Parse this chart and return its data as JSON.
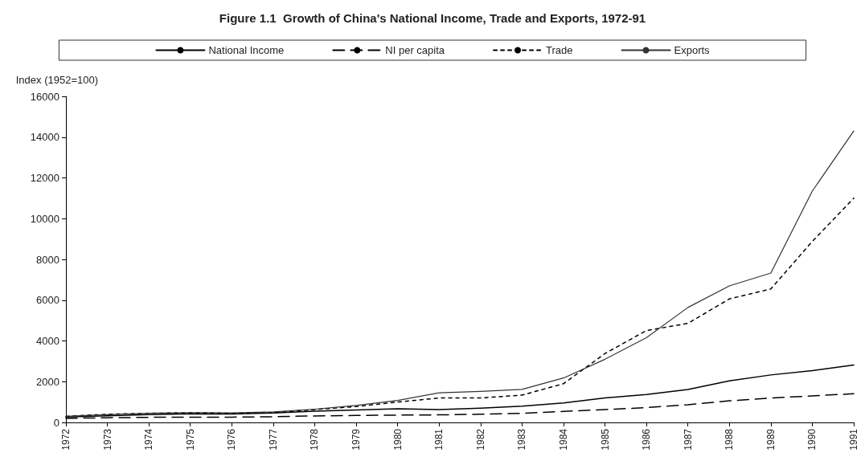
{
  "chart_data": {
    "type": "line",
    "title": "Figure 1.1  Growth of China's National Income, Trade and Exports, 1972-91",
    "ylabel": "Index (1952=100)",
    "categories": [
      "1972",
      "1973",
      "1974",
      "1975",
      "1976",
      "1977",
      "1978",
      "1979",
      "1980",
      "1981",
      "1982",
      "1983",
      "1984",
      "1985",
      "1986",
      "1987",
      "1988",
      "1989",
      "1990",
      "1991"
    ],
    "series": [
      {
        "name": "National Income",
        "color": "#000000",
        "line_style": "solid",
        "values": [
          270,
          330,
          380,
          420,
          410,
          460,
          550,
          610,
          670,
          630,
          700,
          800,
          960,
          1200,
          1370,
          1620,
          2040,
          2330,
          2540,
          2820
        ]
      },
      {
        "name": "NI per capita",
        "color": "#000000",
        "line_style": "dashed",
        "values": [
          200,
          230,
          250,
          260,
          260,
          280,
          320,
          340,
          360,
          370,
          400,
          450,
          540,
          630,
          730,
          870,
          1060,
          1200,
          1300,
          1410
        ]
      },
      {
        "name": "Trade",
        "color": "#000000",
        "line_style": "dotted",
        "values": [
          300,
          400,
          450,
          470,
          440,
          480,
          630,
          780,
          1000,
          1200,
          1200,
          1340,
          1900,
          3380,
          4510,
          4860,
          6060,
          6550,
          8880,
          11000
        ]
      },
      {
        "name": "Exports",
        "color": "#333333",
        "line_style": "solid",
        "values": [
          300,
          380,
          450,
          480,
          470,
          520,
          650,
          830,
          1080,
          1450,
          1520,
          1620,
          2180,
          3100,
          4160,
          5640,
          6700,
          7330,
          11350,
          14300
        ]
      }
    ],
    "ylim": [
      0,
      16000
    ],
    "yticks": [
      0,
      2000,
      4000,
      6000,
      8000,
      10000,
      12000,
      14000,
      16000
    ],
    "grid": false,
    "legend": "top",
    "marker": "none"
  }
}
